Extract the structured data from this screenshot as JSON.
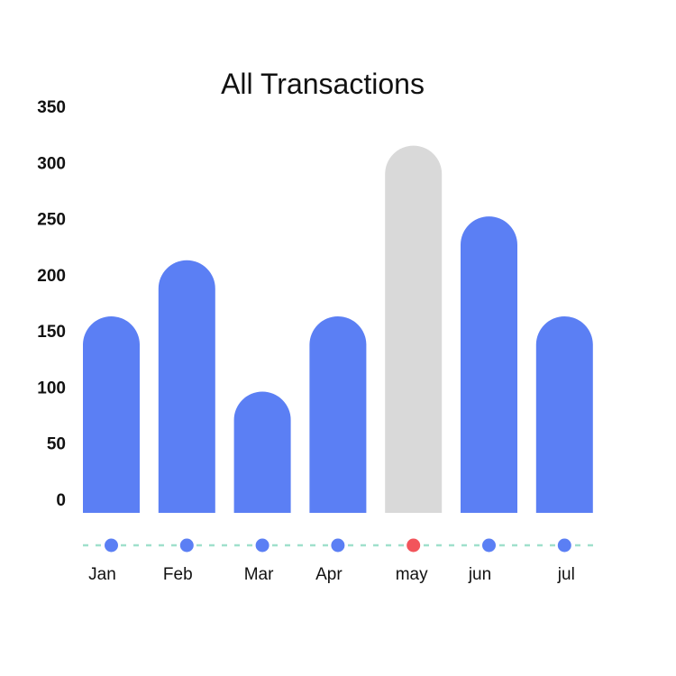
{
  "chart_data": {
    "type": "bar",
    "title": "All Transactions",
    "xlabel": "",
    "ylabel": "",
    "ylim": [
      0,
      350
    ],
    "yticks": [
      350,
      300,
      250,
      200,
      150,
      100,
      50,
      0
    ],
    "categories": [
      "Jan",
      "Feb",
      "Mar",
      "Apr",
      "may",
      "jun",
      "jul"
    ],
    "values": [
      175,
      225,
      108,
      175,
      327,
      264,
      175
    ],
    "highlight_index": 4,
    "grid": false,
    "colors": {
      "bar": "#5b7ff4",
      "bar_highlight": "#d9d9d9",
      "marker": "#5b7ff4",
      "marker_highlight": "#f2545b",
      "baseline_dash": "#9fe0cc"
    }
  }
}
